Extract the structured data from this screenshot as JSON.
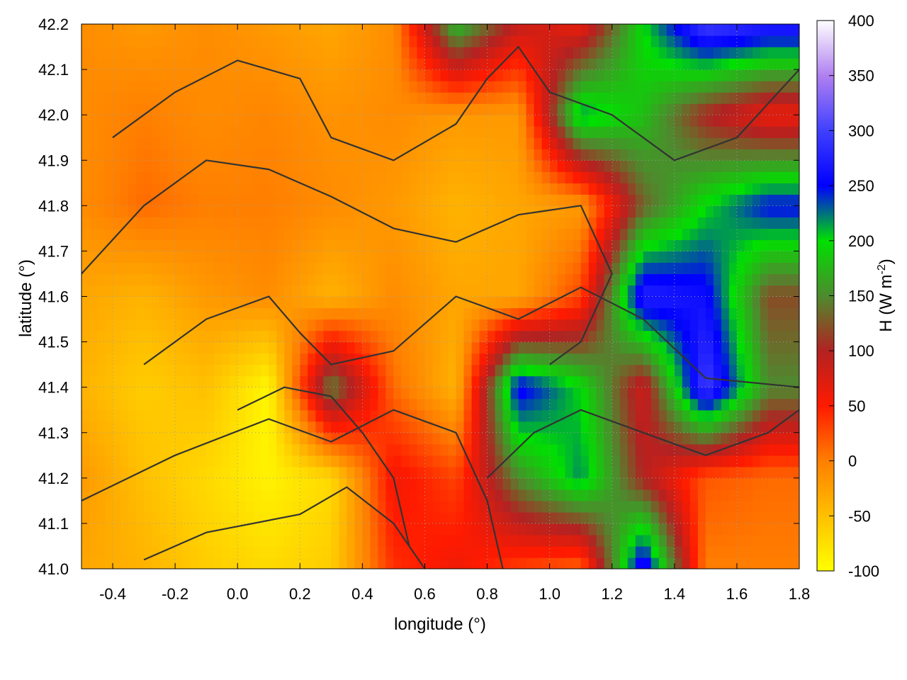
{
  "chart_data": {
    "type": "heatmap",
    "xlabel": "longitude (°)",
    "ylabel": "latitude (°)",
    "colorbar_label": "H (W m",
    "colorbar_label_sup": "-2",
    "colorbar_label_end": ")",
    "xlim": [
      -0.5,
      1.8
    ],
    "ylim": [
      41.0,
      42.2
    ],
    "clim": [
      -100,
      400
    ],
    "x_ticks": [
      -0.4,
      -0.2,
      0.0,
      0.2,
      0.4,
      0.6,
      0.8,
      1.0,
      1.2,
      1.4,
      1.6,
      1.8
    ],
    "x_tick_labels": [
      "-0.4",
      "-0.2",
      "0.0",
      "0.2",
      "0.4",
      "0.6",
      "0.8",
      "1.0",
      "1.2",
      "1.4",
      "1.6",
      "1.8"
    ],
    "y_ticks": [
      41.0,
      41.1,
      41.2,
      41.3,
      41.4,
      41.5,
      41.6,
      41.7,
      41.8,
      41.9,
      42.0,
      42.1,
      42.2
    ],
    "y_tick_labels": [
      "41.0",
      "41.1",
      "41.2",
      "41.3",
      "41.4",
      "41.5",
      "41.6",
      "41.7",
      "41.8",
      "41.9",
      "42.0",
      "42.1",
      "42.2"
    ],
    "colorbar_ticks": [
      -100,
      -50,
      0,
      50,
      100,
      150,
      200,
      250,
      300,
      350,
      400
    ],
    "colorbar_tick_labels": [
      "-100",
      "-50",
      "0",
      "50",
      "100",
      "150",
      "200",
      "250",
      "300",
      "350",
      "400"
    ],
    "colormap": [
      {
        "v": -100,
        "c": "#ffff00"
      },
      {
        "v": -50,
        "c": "#ffc000"
      },
      {
        "v": 0,
        "c": "#ff7f00"
      },
      {
        "v": 50,
        "c": "#ff1a00"
      },
      {
        "v": 100,
        "c": "#b22222"
      },
      {
        "v": 150,
        "c": "#4d8b2e"
      },
      {
        "v": 200,
        "c": "#00e000"
      },
      {
        "v": 250,
        "c": "#0000ff"
      },
      {
        "v": 300,
        "c": "#4040ff"
      },
      {
        "v": 350,
        "c": "#b080f0"
      },
      {
        "v": 400,
        "c": "#ffffff"
      }
    ],
    "grid": true,
    "grid_x": [
      41.0,
      41.2,
      41.4,
      41.6,
      41.8,
      42.0,
      42.2
    ],
    "grid_y": [
      -0.5,
      -0.3,
      -0.1,
      0.1,
      0.3,
      0.5,
      0.7,
      0.9,
      1.1,
      1.3,
      1.5,
      1.7
    ],
    "grid_vals": [
      [
        -30,
        -40,
        -60,
        -70,
        -60,
        40,
        60,
        30,
        10,
        280,
        0,
        0
      ],
      [
        -20,
        -50,
        -70,
        -90,
        -70,
        60,
        30,
        150,
        220,
        100,
        20,
        10
      ],
      [
        -40,
        -60,
        -50,
        -95,
        150,
        10,
        -40,
        260,
        200,
        80,
        300,
        150
      ],
      [
        -30,
        -40,
        -20,
        -10,
        -40,
        -10,
        -30,
        -30,
        30,
        280,
        260,
        120
      ],
      [
        -10,
        10,
        0,
        0,
        -10,
        -20,
        -40,
        -30,
        -20,
        130,
        200,
        250
      ],
      [
        -10,
        0,
        -10,
        -5,
        -15,
        -10,
        -20,
        -20,
        220,
        180,
        100,
        60
      ],
      [
        -10,
        -20,
        -10,
        -20,
        -30,
        -10,
        180,
        90,
        60,
        200,
        300,
        280
      ]
    ],
    "contours": [
      [
        [
          -0.3,
          41.02
        ],
        [
          -0.1,
          41.08
        ],
        [
          0.2,
          41.12
        ],
        [
          0.35,
          41.18
        ],
        [
          0.5,
          41.1
        ],
        [
          0.6,
          41.0
        ]
      ],
      [
        [
          -0.5,
          41.15
        ],
        [
          -0.2,
          41.25
        ],
        [
          0.1,
          41.33
        ],
        [
          0.3,
          41.28
        ],
        [
          0.5,
          41.35
        ],
        [
          0.7,
          41.3
        ],
        [
          0.8,
          41.15
        ],
        [
          0.85,
          41.0
        ]
      ],
      [
        [
          -0.3,
          41.45
        ],
        [
          -0.1,
          41.55
        ],
        [
          0.1,
          41.6
        ],
        [
          0.2,
          41.52
        ],
        [
          0.3,
          41.45
        ],
        [
          0.5,
          41.48
        ],
        [
          0.7,
          41.6
        ],
        [
          0.9,
          41.55
        ],
        [
          1.1,
          41.62
        ],
        [
          1.3,
          41.55
        ],
        [
          1.5,
          41.42
        ],
        [
          1.8,
          41.4
        ]
      ],
      [
        [
          -0.5,
          41.65
        ],
        [
          -0.3,
          41.8
        ],
        [
          -0.1,
          41.9
        ],
        [
          0.1,
          41.88
        ],
        [
          0.3,
          41.82
        ],
        [
          0.5,
          41.75
        ],
        [
          0.7,
          41.72
        ],
        [
          0.9,
          41.78
        ],
        [
          1.1,
          41.8
        ],
        [
          1.2,
          41.65
        ],
        [
          1.1,
          41.5
        ],
        [
          1.0,
          41.45
        ]
      ],
      [
        [
          -0.4,
          41.95
        ],
        [
          -0.2,
          42.05
        ],
        [
          0.0,
          42.12
        ],
        [
          0.2,
          42.08
        ],
        [
          0.3,
          41.95
        ],
        [
          0.5,
          41.9
        ],
        [
          0.7,
          41.98
        ],
        [
          0.8,
          42.08
        ],
        [
          0.9,
          42.15
        ],
        [
          1.0,
          42.05
        ],
        [
          1.2,
          42.0
        ],
        [
          1.4,
          41.9
        ],
        [
          1.6,
          41.95
        ],
        [
          1.8,
          42.1
        ]
      ],
      [
        [
          0.8,
          41.2
        ],
        [
          0.95,
          41.3
        ],
        [
          1.1,
          41.35
        ],
        [
          1.3,
          41.3
        ],
        [
          1.5,
          41.25
        ],
        [
          1.7,
          41.3
        ],
        [
          1.8,
          41.35
        ]
      ],
      [
        [
          0.0,
          41.35
        ],
        [
          0.15,
          41.4
        ],
        [
          0.3,
          41.38
        ],
        [
          0.4,
          41.3
        ],
        [
          0.5,
          41.2
        ],
        [
          0.55,
          41.05
        ]
      ]
    ]
  }
}
